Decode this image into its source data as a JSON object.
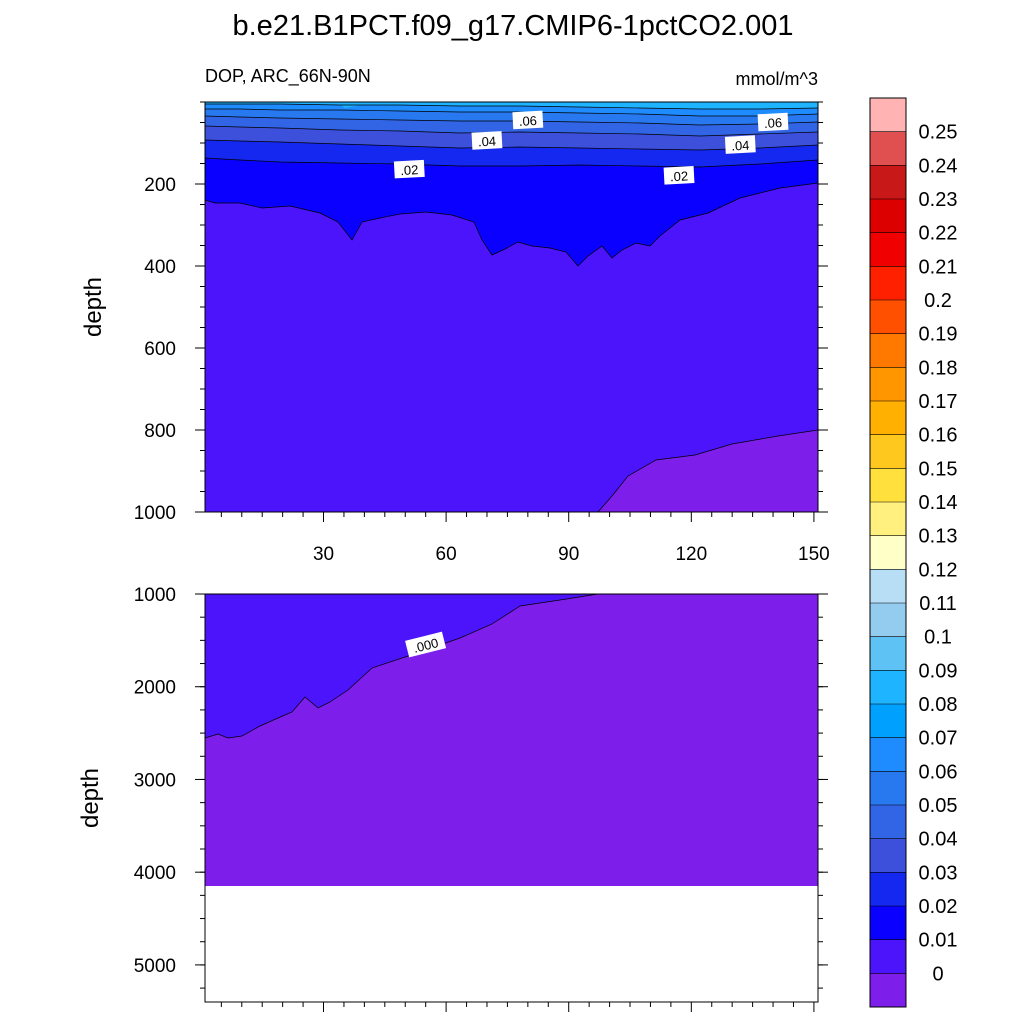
{
  "chart_data": {
    "type": "contour",
    "title": "b.e21.B1PCT.f09_g17.CMIP6-1pctCO2.001",
    "subtitle_left": "DOP, ARC_66N-90N",
    "subtitle_right": "mmol/m^3",
    "ylabel": "depth",
    "x_ticks": [
      "30",
      "60",
      "90",
      "120",
      "150"
    ],
    "x_tick_values": [
      30,
      60,
      90,
      120,
      150
    ],
    "xlim": [
      1,
      151
    ],
    "panels": [
      {
        "name": "upper",
        "ylim": [
          0,
          1000
        ],
        "y_ticks": [
          "200",
          "400",
          "600",
          "800",
          "1000"
        ],
        "y_tick_values": [
          200,
          400,
          600,
          800,
          1000
        ],
        "contour_labels": [
          {
            "text": ".06",
            "x": 80,
            "depth": 45
          },
          {
            "text": ".04",
            "x": 70,
            "depth": 95
          },
          {
            "text": ".02",
            "x": 51,
            "depth": 165
          },
          {
            "text": ".06",
            "x": 140,
            "depth": 50
          },
          {
            "text": ".04",
            "x": 132,
            "depth": 105
          },
          {
            "text": ".02",
            "x": 117,
            "depth": 180
          }
        ]
      },
      {
        "name": "lower",
        "ylim": [
          1000,
          5400
        ],
        "y_ticks": [
          "1000",
          "2000",
          "3000",
          "4000",
          "5000"
        ],
        "y_tick_values": [
          1000,
          2000,
          3000,
          4000,
          5000
        ],
        "contour_labels": [
          {
            "text": ".000",
            "x": 55,
            "depth": 1550
          }
        ]
      }
    ],
    "colorbar": {
      "labels": [
        "0.25",
        "0.24",
        "0.23",
        "0.22",
        "0.21",
        "0.2",
        "0.19",
        "0.18",
        "0.17",
        "0.16",
        "0.15",
        "0.14",
        "0.13",
        "0.12",
        "0.11",
        "0.1",
        "0.09",
        "0.08",
        "0.07",
        "0.06",
        "0.05",
        "0.04",
        "0.03",
        "0.02",
        "0.01",
        "0"
      ],
      "colors": [
        "#FFB3B3",
        "#E05050",
        "#C81818",
        "#DC0000",
        "#F00000",
        "#FF2000",
        "#FF5000",
        "#FF7800",
        "#FF9600",
        "#FFB000",
        "#FFC81E",
        "#FFE03C",
        "#FFF080",
        "#FFFFC8",
        "#B8DEF5",
        "#94CCF0",
        "#5EC2F5",
        "#1EB4FF",
        "#00A0FF",
        "#1E8CFF",
        "#2878F0",
        "#3264E6",
        "#3C50DC",
        "#1428F0",
        "#0A00FF",
        "#4B14FA",
        "#7D1EEB"
      ]
    }
  }
}
